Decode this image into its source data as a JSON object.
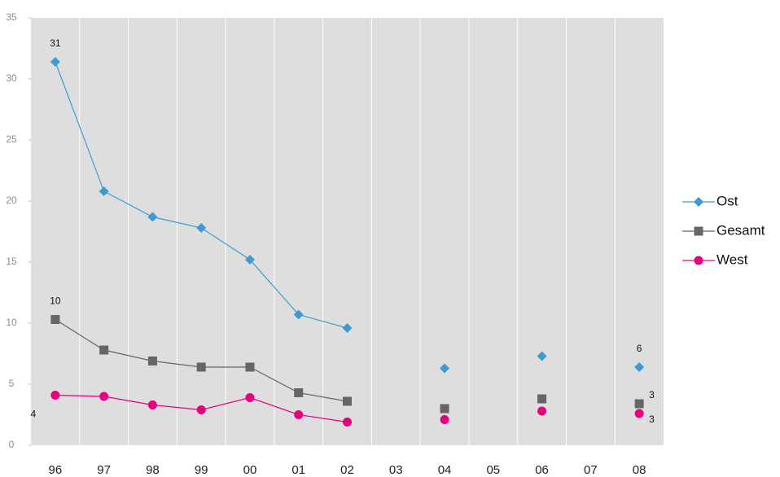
{
  "chart_data": {
    "type": "line",
    "categories": [
      "96",
      "97",
      "98",
      "99",
      "00",
      "01",
      "02",
      "03",
      "04",
      "05",
      "06",
      "07",
      "08"
    ],
    "ylim": [
      0,
      35
    ],
    "yticks": [
      0,
      5,
      10,
      15,
      20,
      25,
      30,
      35
    ],
    "grid": true,
    "legend": "right",
    "series": [
      {
        "name": "Ost",
        "color": "#3d9bd1",
        "marker": "diamond",
        "values": [
          31.4,
          20.8,
          18.7,
          17.8,
          15.2,
          10.7,
          9.6,
          null,
          6.3,
          null,
          7.3,
          null,
          6.4
        ],
        "value_labels": [
          "31",
          null,
          null,
          null,
          null,
          null,
          null,
          null,
          null,
          null,
          null,
          null,
          "6"
        ]
      },
      {
        "name": "Gesamt",
        "color": "#666666",
        "marker": "square",
        "values": [
          10.3,
          7.8,
          6.9,
          6.4,
          6.4,
          4.3,
          3.6,
          null,
          3.0,
          null,
          3.8,
          null,
          3.4
        ],
        "value_labels": [
          "10",
          null,
          null,
          null,
          null,
          null,
          null,
          null,
          null,
          null,
          null,
          null,
          "3"
        ]
      },
      {
        "name": "West",
        "color": "#e6007e",
        "marker": "circle",
        "values": [
          4.1,
          4.0,
          3.3,
          2.9,
          3.9,
          2.5,
          1.9,
          null,
          2.1,
          null,
          2.8,
          null,
          2.6
        ],
        "value_labels": [
          "4",
          null,
          null,
          null,
          null,
          null,
          null,
          null,
          null,
          null,
          null,
          null,
          "3"
        ]
      }
    ]
  }
}
